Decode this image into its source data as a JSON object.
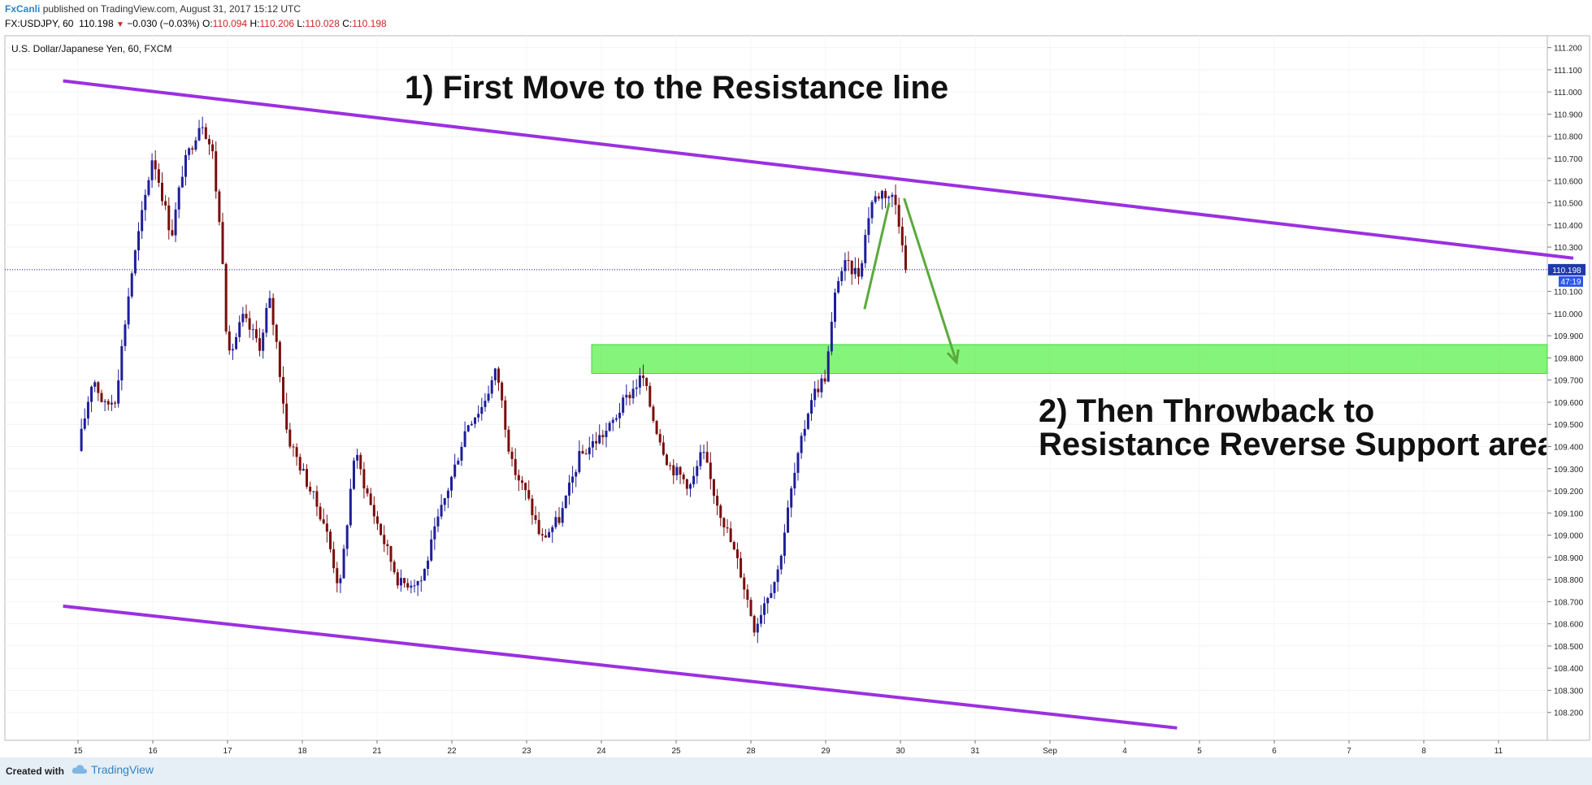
{
  "header": {
    "author": "FxCanli",
    "published": "published on TradingView.com, August 31, 2017 15:12 UTC",
    "symbol_info": "FX:USDJPY, 60",
    "last": "110.198",
    "change": "−0.030 (−0.03%)",
    "open_label": "O:",
    "open": "110.094",
    "high_label": "H:",
    "high": "110.206",
    "low_label": "L:",
    "low": "110.028",
    "close_label": "C:",
    "close": "110.198"
  },
  "chart_title": "U.S. Dollar/Japanese Yen, 60, FXCM",
  "annotations": {
    "note1": "1) First Move to the Resistance line",
    "note2_line1": "2) Then Throwback to",
    "note2_line2": "Resistance Reverse Support area"
  },
  "price_badge": "110.198",
  "countdown_badge": "47:19",
  "footer": {
    "created": "Created with",
    "brand": "TradingView"
  },
  "colors": {
    "channel": "#9b30e0",
    "zone": "#5cf04f",
    "up": "#1e1e9a",
    "down": "#7a0d0d",
    "arrow": "#5aaa3c",
    "price_line": "#1e1e9a"
  },
  "icons": [
    "triangle-down-icon",
    "tradingview-cloud-icon"
  ],
  "chart_data": {
    "type": "candlestick",
    "title": "U.S. Dollar/Japanese Yen, 60, FXCM",
    "x_tick_labels": [
      "15",
      "16",
      "17",
      "18",
      "21",
      "22",
      "23",
      "24",
      "25",
      "28",
      "29",
      "30",
      "31",
      "Sep",
      "4",
      "5",
      "6",
      "7",
      "8",
      "11"
    ],
    "y_tick_labels": [
      "111.200",
      "111.100",
      "111.000",
      "110.900",
      "110.800",
      "110.700",
      "110.600",
      "110.500",
      "110.400",
      "110.300",
      "110.200",
      "110.100",
      "110.000",
      "109.900",
      "109.800",
      "109.700",
      "109.600",
      "109.500",
      "109.400",
      "109.300",
      "109.200",
      "109.100",
      "109.000",
      "108.900",
      "108.800",
      "108.700",
      "108.600",
      "108.500",
      "108.400",
      "108.300",
      "108.200"
    ],
    "ylim": [
      108.1,
      111.25
    ],
    "last_price": 110.198,
    "path": [
      [
        0,
        109.38
      ],
      [
        0.2,
        109.72
      ],
      [
        0.35,
        109.58
      ],
      [
        0.5,
        109.62
      ],
      [
        0.7,
        110.15
      ],
      [
        1.0,
        110.72
      ],
      [
        1.25,
        110.35
      ],
      [
        1.4,
        110.65
      ],
      [
        1.65,
        110.88
      ],
      [
        1.8,
        110.72
      ],
      [
        1.95,
        110.2
      ],
      [
        2.0,
        109.78
      ],
      [
        2.2,
        109.98
      ],
      [
        2.45,
        109.85
      ],
      [
        2.55,
        110.08
      ],
      [
        2.65,
        109.88
      ],
      [
        2.8,
        109.45
      ],
      [
        3.3,
        109.05
      ],
      [
        3.5,
        108.75
      ],
      [
        3.7,
        109.38
      ],
      [
        3.9,
        109.15
      ],
      [
        4.3,
        108.78
      ],
      [
        4.6,
        108.8
      ],
      [
        4.8,
        109.05
      ],
      [
        5.05,
        109.32
      ],
      [
        5.2,
        109.5
      ],
      [
        5.4,
        109.58
      ],
      [
        5.6,
        109.75
      ],
      [
        5.8,
        109.32
      ],
      [
        6.0,
        109.18
      ],
      [
        6.2,
        108.98
      ],
      [
        6.45,
        109.08
      ],
      [
        6.7,
        109.35
      ],
      [
        6.9,
        109.42
      ],
      [
        7.1,
        109.48
      ],
      [
        7.3,
        109.6
      ],
      [
        7.55,
        109.72
      ],
      [
        7.7,
        109.52
      ],
      [
        7.9,
        109.32
      ],
      [
        8.2,
        109.22
      ],
      [
        8.35,
        109.38
      ],
      [
        8.5,
        109.2
      ],
      [
        8.85,
        108.85
      ],
      [
        9.05,
        108.58
      ],
      [
        9.2,
        108.72
      ],
      [
        9.35,
        108.82
      ],
      [
        9.55,
        109.22
      ],
      [
        9.8,
        109.62
      ],
      [
        10.0,
        109.72
      ],
      [
        10.15,
        110.15
      ],
      [
        10.25,
        110.22
      ],
      [
        10.45,
        110.18
      ],
      [
        10.6,
        110.5
      ],
      [
        10.75,
        110.55
      ],
      [
        10.92,
        110.52
      ],
      [
        11.02,
        110.35
      ],
      [
        11.08,
        110.198
      ]
    ],
    "channel_upper": {
      "from": [
        -0.2,
        111.05
      ],
      "to": [
        20.0,
        110.25
      ]
    },
    "channel_lower": {
      "from": [
        -0.2,
        108.68
      ],
      "to": [
        14.7,
        108.13
      ]
    },
    "zone": {
      "x_from": 6.87,
      "x_to": 20.0,
      "y_low": 109.73,
      "y_high": 109.86
    },
    "arrows": [
      {
        "from": [
          10.52,
          110.02
        ],
        "to": [
          10.85,
          110.5
        ]
      },
      {
        "from": [
          11.05,
          110.52
        ],
        "to": [
          11.75,
          109.78
        ]
      }
    ]
  }
}
